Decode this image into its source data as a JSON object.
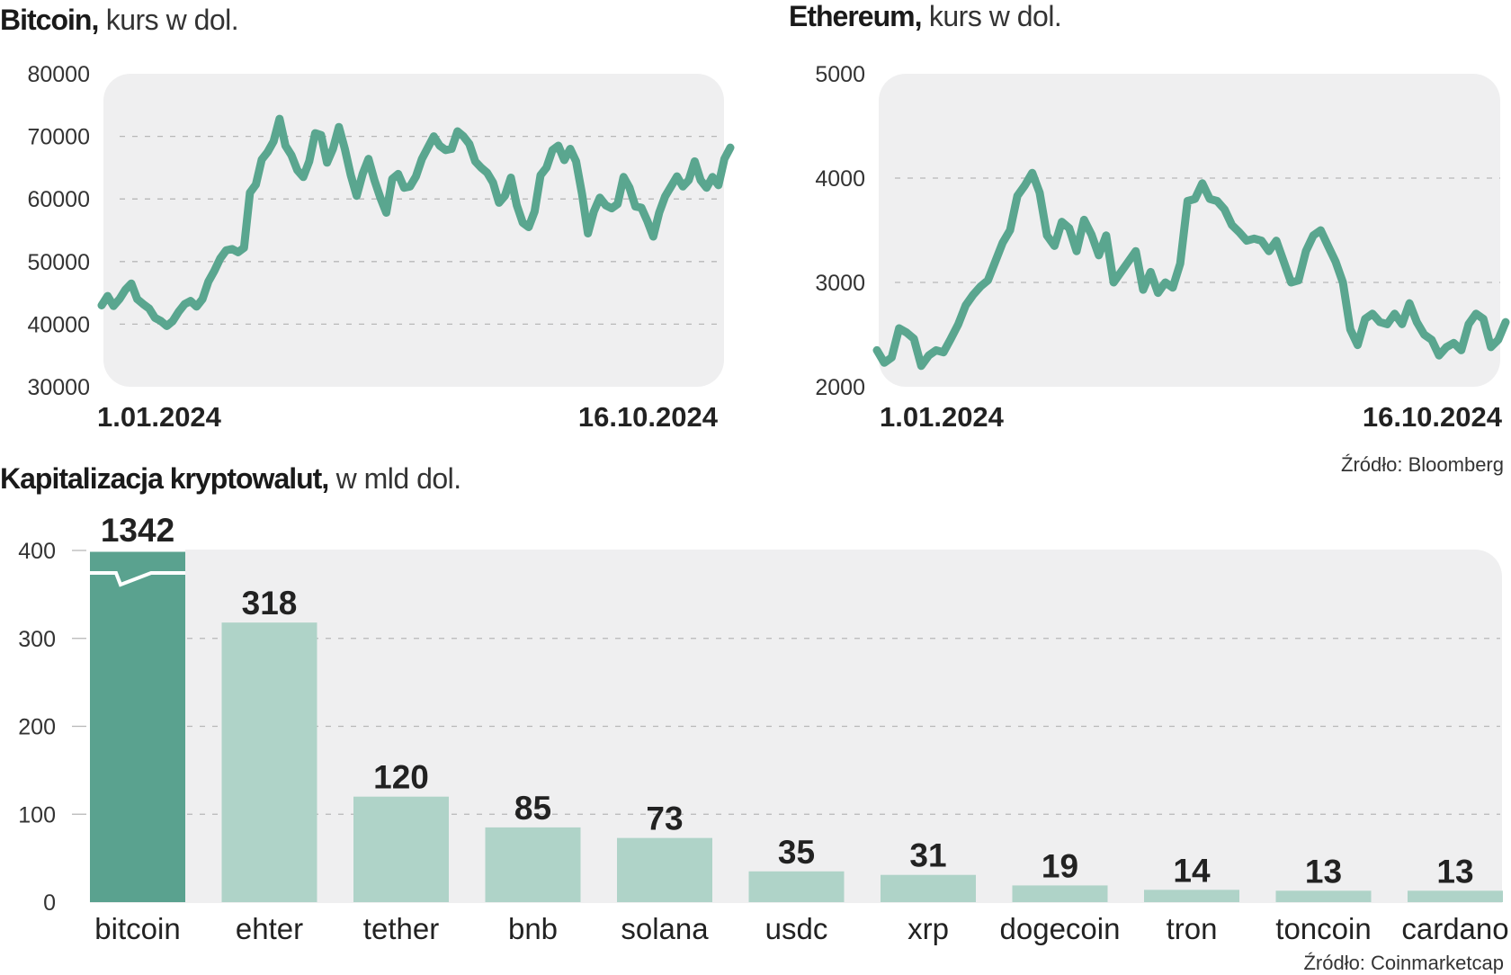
{
  "sources": {
    "bloomberg": "Źródło: Bloomberg",
    "coinmarketcap": "Źródło: Coinmarketcap"
  },
  "colors": {
    "line": "#5aa68f",
    "bar_main": "#5aa28f",
    "bar_other": "#afd3c8",
    "panel": "#efeff0",
    "grid": "#b8b8b8"
  },
  "chart_data": [
    {
      "type": "line",
      "title": "Bitcoin,",
      "subtitle": "kurs w dol.",
      "ylim": [
        30000,
        80000
      ],
      "yticks": [
        "30000",
        "40000",
        "50000",
        "60000",
        "70000",
        "80000"
      ],
      "xtick_labels": [
        "1.01.2024",
        "16.10.2024"
      ],
      "grid": true,
      "series": [
        {
          "values": [
            43000,
            44500,
            42900,
            44000,
            45500,
            46500,
            44000,
            43200,
            42500,
            41000,
            40500,
            39700,
            40500,
            42000,
            43200,
            43700,
            42800,
            44000,
            46800,
            48500,
            50500,
            51800,
            52000,
            51500,
            52200,
            61000,
            62300,
            66300,
            67500,
            69200,
            72800,
            68500,
            67000,
            64600,
            63500,
            66000,
            70500,
            70200,
            65800,
            68000,
            71500,
            68000,
            63800,
            60500,
            64000,
            66400,
            63000,
            60200,
            57800,
            63200,
            64000,
            61800,
            62000,
            63600,
            66400,
            68200,
            70000,
            68500,
            67800,
            68000,
            70800,
            70000,
            68800,
            66000,
            65000,
            64200,
            62600,
            59400,
            60500,
            63400,
            59000,
            56200,
            55500,
            58000,
            63800,
            65000,
            67800,
            68500,
            66200,
            68000,
            66000,
            60800,
            54500,
            58000,
            60200,
            59000,
            58500,
            59200,
            63500,
            61800,
            58800,
            58600,
            56500,
            54000,
            57800,
            60400,
            62000,
            63600,
            62000,
            63000,
            66000,
            63000,
            61800,
            63500,
            62200,
            66400,
            68200
          ]
        }
      ]
    },
    {
      "type": "line",
      "title": "Ethereum,",
      "subtitle": "kurs w dol.",
      "ylim": [
        2000,
        5000
      ],
      "yticks": [
        "2000",
        "3000",
        "4000",
        "5000"
      ],
      "xtick_labels": [
        "1.01.2024",
        "16.10.2024"
      ],
      "grid": true,
      "series": [
        {
          "values": [
            2350,
            2230,
            2280,
            2560,
            2520,
            2460,
            2200,
            2300,
            2350,
            2330,
            2460,
            2600,
            2780,
            2880,
            2960,
            3020,
            3200,
            3380,
            3500,
            3830,
            3930,
            4050,
            3860,
            3450,
            3350,
            3580,
            3520,
            3300,
            3600,
            3460,
            3260,
            3450,
            3000,
            3100,
            3200,
            3300,
            2930,
            3100,
            2900,
            3000,
            2950,
            3180,
            3780,
            3800,
            3950,
            3800,
            3780,
            3700,
            3550,
            3480,
            3400,
            3420,
            3400,
            3300,
            3400,
            3200,
            3000,
            3020,
            3300,
            3450,
            3500,
            3350,
            3200,
            3000,
            2550,
            2400,
            2650,
            2700,
            2620,
            2600,
            2700,
            2600,
            2800,
            2620,
            2500,
            2450,
            2300,
            2380,
            2420,
            2350,
            2600,
            2700,
            2650,
            2380,
            2450,
            2620
          ]
        }
      ]
    },
    {
      "type": "bar",
      "title": "Kapitalizacja kryptowalut,",
      "subtitle": "w mld dol.",
      "ylim": [
        0,
        400
      ],
      "yticks": [
        "0",
        "100",
        "200",
        "300",
        "400"
      ],
      "grid": true,
      "categories": [
        "bitcoin",
        "ehter",
        "tether",
        "bnb",
        "solana",
        "usdc",
        "xrp",
        "dogecoin",
        "tron",
        "toncoin",
        "cardano"
      ],
      "values": [
        1342,
        318,
        120,
        85,
        73,
        35,
        31,
        19,
        14,
        13,
        13
      ],
      "value_labels": [
        "1342",
        "318",
        "120",
        "85",
        "73",
        "35",
        "31",
        "19",
        "14",
        "13",
        "13"
      ],
      "axis_break_on": "bitcoin"
    }
  ]
}
